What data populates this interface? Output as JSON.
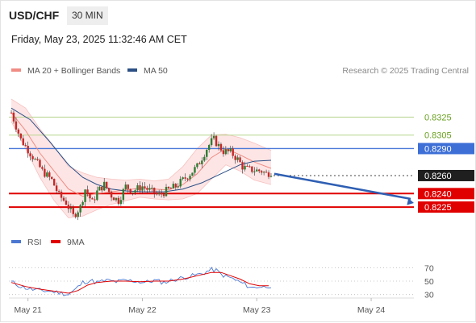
{
  "header": {
    "symbol": "USD/CHF",
    "timeframe": "30 MIN",
    "datetime": "Friday, May 23, 2025 11:32:46 AM CET"
  },
  "legend": {
    "items": [
      {
        "label": "MA 20 + Bollinger Bands",
        "color": "#f08c84"
      },
      {
        "label": "MA 50",
        "color": "#2c4f86"
      }
    ],
    "credit": "Research © 2025 Trading Central"
  },
  "chart_data": [
    {
      "type": "candlestick",
      "title": "",
      "y_range": [
        0.82,
        0.8345
      ],
      "levels": [
        {
          "value": 0.8325,
          "label": "0.8325",
          "kind": "resistance",
          "color": "#b6d58e",
          "label_color": "#6aa121"
        },
        {
          "value": 0.8305,
          "label": "0.8305",
          "kind": "resistance",
          "color": "#b6d58e",
          "label_color": "#6aa121"
        },
        {
          "value": 0.829,
          "label": "0.8290",
          "kind": "pivot",
          "color": "#4a78d8",
          "label_color": "#ffffff",
          "label_bg": "#3d6fd6"
        },
        {
          "value": 0.826,
          "label": "0.8260",
          "kind": "last",
          "color": "#444444",
          "label_color": "#ffffff",
          "label_bg": "#1f1f1f"
        },
        {
          "value": 0.824,
          "label": "0.8240",
          "kind": "support",
          "color": "#e00000",
          "label_color": "#ffffff",
          "label_bg": "#e00000"
        },
        {
          "value": 0.8225,
          "label": "0.8225",
          "kind": "support",
          "color": "#e00000",
          "label_color": "#ffffff",
          "label_bg": "#e00000"
        }
      ],
      "forecast": {
        "from": 0.8262,
        "to": 0.8226,
        "color": "#2f5fb3"
      },
      "close_path": [
        [
          0,
          0.833
        ],
        [
          4,
          0.83
        ],
        [
          8,
          0.8285
        ],
        [
          13,
          0.8265
        ],
        [
          17,
          0.8255
        ],
        [
          20,
          0.8238
        ],
        [
          23,
          0.823
        ],
        [
          26,
          0.8215
        ],
        [
          29,
          0.8225
        ],
        [
          31,
          0.8245
        ],
        [
          34,
          0.823
        ],
        [
          36,
          0.8242
        ],
        [
          39,
          0.825
        ],
        [
          42,
          0.8238
        ],
        [
          45,
          0.8232
        ],
        [
          48,
          0.8248
        ],
        [
          51,
          0.8243
        ],
        [
          55,
          0.8248
        ],
        [
          59,
          0.8242
        ],
        [
          62,
          0.8238
        ],
        [
          65,
          0.8243
        ],
        [
          69,
          0.8248
        ],
        [
          72,
          0.8255
        ],
        [
          75,
          0.8262
        ],
        [
          78,
          0.827
        ],
        [
          80,
          0.828
        ],
        [
          82,
          0.829
        ],
        [
          84,
          0.8298
        ],
        [
          85,
          0.83
        ],
        [
          87,
          0.8293
        ],
        [
          89,
          0.8287
        ],
        [
          92,
          0.8286
        ],
        [
          95,
          0.8278
        ],
        [
          97,
          0.827
        ],
        [
          99,
          0.8267
        ],
        [
          102,
          0.8266
        ],
        [
          105,
          0.8265
        ],
        [
          107,
          0.8262
        ],
        [
          109,
          0.8264
        ]
      ],
      "ma20": [
        [
          0,
          0.833
        ],
        [
          6,
          0.831
        ],
        [
          12,
          0.8285
        ],
        [
          18,
          0.8265
        ],
        [
          24,
          0.8245
        ],
        [
          30,
          0.8237
        ],
        [
          36,
          0.824
        ],
        [
          42,
          0.8242
        ],
        [
          48,
          0.8244
        ],
        [
          54,
          0.8246
        ],
        [
          60,
          0.8245
        ],
        [
          66,
          0.8244
        ],
        [
          72,
          0.825
        ],
        [
          78,
          0.8262
        ],
        [
          84,
          0.828
        ],
        [
          90,
          0.829
        ],
        [
          96,
          0.8283
        ],
        [
          102,
          0.8275
        ],
        [
          109,
          0.8268
        ]
      ],
      "bb_upper": [
        [
          0,
          0.8345
        ],
        [
          6,
          0.8335
        ],
        [
          12,
          0.8312
        ],
        [
          18,
          0.8292
        ],
        [
          24,
          0.827
        ],
        [
          30,
          0.8263
        ],
        [
          36,
          0.8258
        ],
        [
          42,
          0.8256
        ],
        [
          48,
          0.8255
        ],
        [
          54,
          0.8256
        ],
        [
          60,
          0.8254
        ],
        [
          66,
          0.8256
        ],
        [
          72,
          0.827
        ],
        [
          78,
          0.829
        ],
        [
          84,
          0.8305
        ],
        [
          90,
          0.8306
        ],
        [
          96,
          0.8302
        ],
        [
          102,
          0.8296
        ],
        [
          109,
          0.8288
        ]
      ],
      "bb_lower": [
        [
          0,
          0.832
        ],
        [
          6,
          0.829
        ],
        [
          12,
          0.8258
        ],
        [
          18,
          0.8232
        ],
        [
          24,
          0.8213
        ],
        [
          30,
          0.8215
        ],
        [
          36,
          0.8222
        ],
        [
          42,
          0.8228
        ],
        [
          48,
          0.8232
        ],
        [
          54,
          0.8236
        ],
        [
          60,
          0.8234
        ],
        [
          66,
          0.8233
        ],
        [
          72,
          0.8234
        ],
        [
          78,
          0.824
        ],
        [
          84,
          0.8256
        ],
        [
          90,
          0.8272
        ],
        [
          96,
          0.8265
        ],
        [
          102,
          0.8255
        ],
        [
          109,
          0.825
        ]
      ],
      "ma50": [
        [
          0,
          0.8335
        ],
        [
          8,
          0.8322
        ],
        [
          16,
          0.8298
        ],
        [
          24,
          0.8272
        ],
        [
          30,
          0.8258
        ],
        [
          36,
          0.825
        ],
        [
          42,
          0.8245
        ],
        [
          48,
          0.8243
        ],
        [
          56,
          0.8242
        ],
        [
          64,
          0.8242
        ],
        [
          72,
          0.8245
        ],
        [
          80,
          0.8252
        ],
        [
          88,
          0.8262
        ],
        [
          96,
          0.8272
        ],
        [
          102,
          0.8276
        ],
        [
          109,
          0.8277
        ]
      ]
    },
    {
      "type": "line",
      "title": "",
      "legend": [
        {
          "label": "RSI",
          "color": "#4b77d1"
        },
        {
          "label": "9MA",
          "color": "#e00000"
        }
      ],
      "y_range": [
        20,
        80
      ],
      "ticks": [
        70,
        50,
        30
      ],
      "rsi": [
        [
          0,
          49
        ],
        [
          4,
          42
        ],
        [
          8,
          38
        ],
        [
          12,
          36
        ],
        [
          16,
          35
        ],
        [
          20,
          33
        ],
        [
          24,
          30
        ],
        [
          27,
          38
        ],
        [
          30,
          48
        ],
        [
          33,
          51
        ],
        [
          36,
          48
        ],
        [
          40,
          51
        ],
        [
          44,
          49
        ],
        [
          48,
          51
        ],
        [
          52,
          50
        ],
        [
          56,
          48
        ],
        [
          60,
          51
        ],
        [
          64,
          48
        ],
        [
          68,
          52
        ],
        [
          72,
          55
        ],
        [
          76,
          58
        ],
        [
          80,
          61
        ],
        [
          84,
          67
        ],
        [
          86,
          66
        ],
        [
          88,
          60
        ],
        [
          90,
          57
        ],
        [
          92,
          55
        ],
        [
          95,
          50
        ],
        [
          98,
          45
        ],
        [
          101,
          40
        ],
        [
          104,
          42
        ],
        [
          106,
          41
        ],
        [
          108,
          43
        ]
      ],
      "ma9": [
        [
          0,
          48
        ],
        [
          6,
          42
        ],
        [
          12,
          38
        ],
        [
          18,
          35
        ],
        [
          24,
          32
        ],
        [
          28,
          36
        ],
        [
          32,
          44
        ],
        [
          36,
          48
        ],
        [
          42,
          50
        ],
        [
          48,
          50
        ],
        [
          54,
          49
        ],
        [
          60,
          50
        ],
        [
          66,
          50
        ],
        [
          72,
          53
        ],
        [
          78,
          58
        ],
        [
          84,
          63
        ],
        [
          88,
          63
        ],
        [
          92,
          58
        ],
        [
          96,
          53
        ],
        [
          100,
          46
        ],
        [
          104,
          43
        ],
        [
          108,
          43
        ]
      ]
    }
  ],
  "x_axis": {
    "labels": [
      {
        "label": "May 21",
        "bar": 7
      },
      {
        "label": "May 22",
        "bar": 55
      },
      {
        "label": "May 23",
        "bar": 103
      },
      {
        "label": "May 24",
        "bar": 151
      }
    ],
    "bar_range": [
      0,
      174
    ]
  }
}
